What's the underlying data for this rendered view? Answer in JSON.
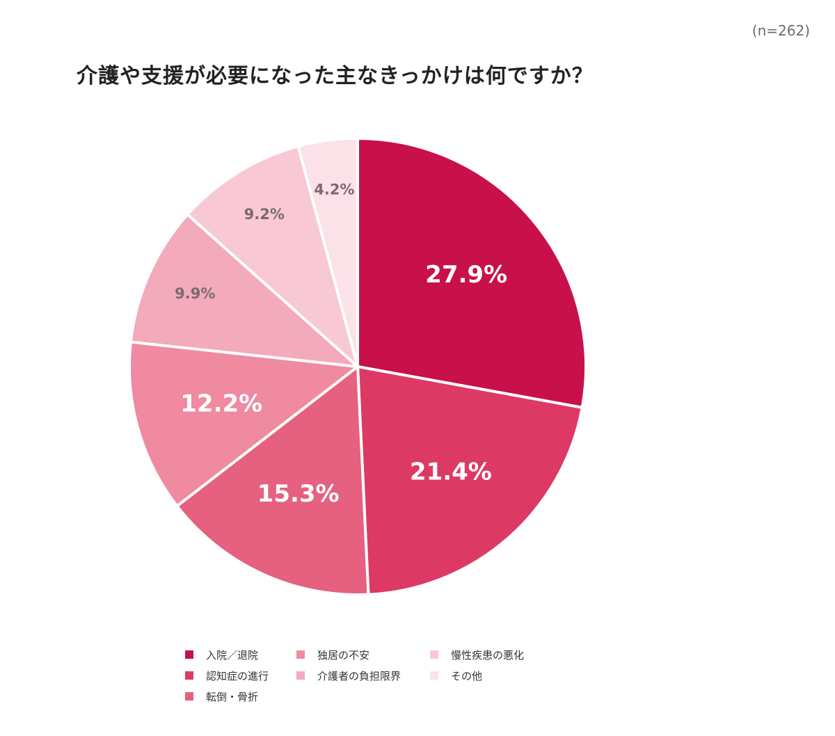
{
  "header": {
    "sample_size": "(n=262)",
    "title": "介護や支援が必要になった主なきっかけは何ですか？"
  },
  "chart_data": {
    "type": "pie",
    "title": "介護や支援が必要になった主なきっかけは何ですか？",
    "subtitle": "(n=262)",
    "start": "12 o'clock, clockwise",
    "legend_placement": "bottom",
    "slices": [
      {
        "label": "入院／退院",
        "value": 27.9,
        "value_label": "27.9%",
        "color": "#c8104a",
        "label_color": "#ffffff"
      },
      {
        "label": "認知症の進行",
        "value": 21.4,
        "value_label": "21.4%",
        "color": "#dc3a65",
        "label_color": "#ffffff"
      },
      {
        "label": "転倒・骨折",
        "value": 15.3,
        "value_label": "15.3%",
        "color": "#e6607f",
        "label_color": "#ffffff"
      },
      {
        "label": "独居の不安",
        "value": 12.2,
        "value_label": "12.2%",
        "color": "#ef8aa0",
        "label_color": "#ffffff"
      },
      {
        "label": "介護者の負担限界",
        "value": 9.9,
        "value_label": "9.9%",
        "color": "#f3aabb",
        "label_color": "#7a6a70"
      },
      {
        "label": "慢性疾患の悪化",
        "value": 9.2,
        "value_label": "9.2%",
        "color": "#f8c9d4",
        "label_color": "#7a6a70"
      },
      {
        "label": "その他",
        "value": 4.2,
        "value_label": "4.2%",
        "color": "#fbe1e8",
        "label_color": "#7a6a70"
      }
    ]
  }
}
